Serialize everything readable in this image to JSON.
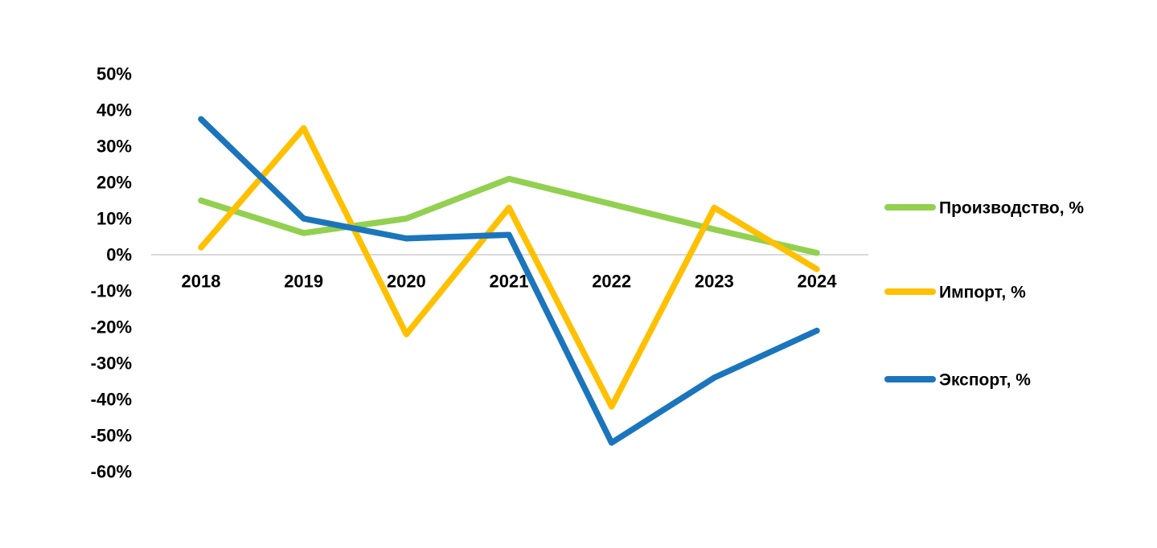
{
  "chart_data": {
    "type": "line",
    "categories": [
      "2018",
      "2019",
      "2020",
      "2021",
      "2022",
      "2023",
      "2024"
    ],
    "series": [
      {
        "id": "production",
        "name": "Производство, %",
        "color": "#92D050",
        "values": [
          15,
          6,
          10,
          21,
          14,
          7,
          0.5
        ]
      },
      {
        "id": "import",
        "name": "Импорт, %",
        "color": "#FFC000",
        "values": [
          2,
          35,
          -22,
          13,
          -42,
          13,
          -4
        ]
      },
      {
        "id": "export",
        "name": "Экспорт, %",
        "color": "#1B75BC",
        "values": [
          37.5,
          10,
          4.5,
          5.5,
          -52,
          -34,
          -21
        ]
      }
    ],
    "y_axis": {
      "min": -60,
      "max": 50,
      "step": 10,
      "ticks": [
        {
          "label": "50%",
          "value": 50
        },
        {
          "label": "40%",
          "value": 40
        },
        {
          "label": "30%",
          "value": 30
        },
        {
          "label": "20%",
          "value": 20
        },
        {
          "label": "10%",
          "value": 10
        },
        {
          "label": "0%",
          "value": 0
        },
        {
          "label": "-10%",
          "value": -10
        },
        {
          "label": "-20%",
          "value": -20
        },
        {
          "label": "-30%",
          "value": -30
        },
        {
          "label": "-40%",
          "value": -40
        },
        {
          "label": "-50%",
          "value": -50
        },
        {
          "label": "-60%",
          "value": -60
        }
      ]
    },
    "gridline": {
      "value": 0,
      "color": "#D9D9D9"
    },
    "legend": {
      "position": "right"
    },
    "background": "#FFFFFF",
    "text_color": "#000000",
    "title": "",
    "xlabel": "",
    "ylabel": ""
  }
}
